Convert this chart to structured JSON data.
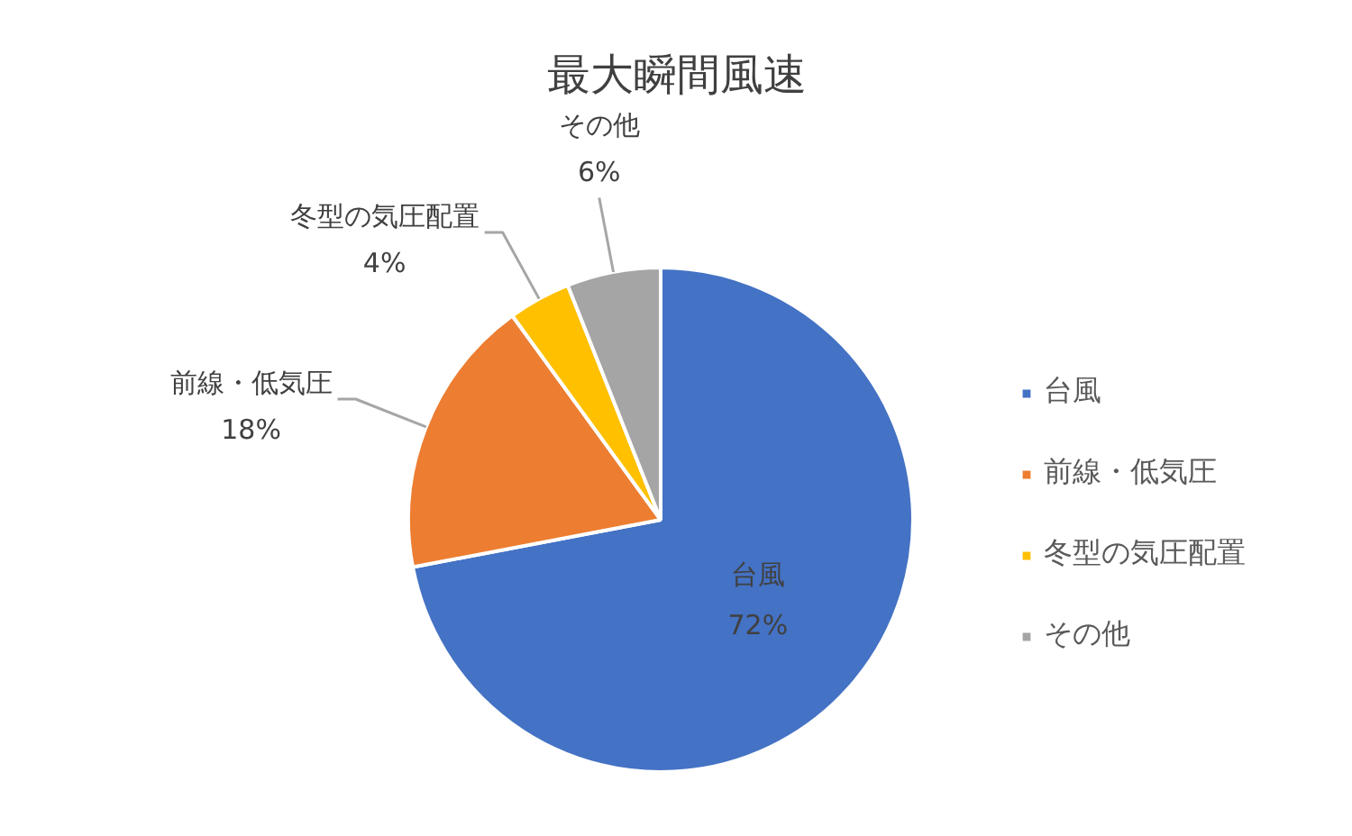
{
  "chart_data": {
    "type": "pie",
    "title": "最大瞬間風速",
    "categories": [
      "台風",
      "前線・低気圧",
      "冬型の気圧配置",
      "その他"
    ],
    "values": [
      72,
      18,
      4,
      6
    ],
    "colors": [
      "#4472c4",
      "#ed7d31",
      "#ffc000",
      "#a5a5a5"
    ],
    "value_labels": [
      "72%",
      "18%",
      "4%",
      "6%"
    ],
    "legend": "right"
  }
}
